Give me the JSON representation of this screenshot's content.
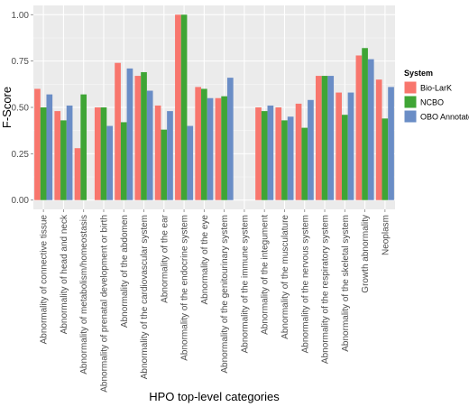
{
  "chart_data": {
    "type": "bar",
    "xlabel": "HPO top-level categories",
    "ylabel": "F-Score",
    "ylim": [
      -0.05,
      1.05
    ],
    "yticks": [
      "0.00",
      "0.25",
      "0.50",
      "0.75",
      "1.00"
    ],
    "grid": true,
    "legend": {
      "title": "System",
      "position": "right"
    },
    "categories": [
      "Abnormality of connective tissue",
      "Abnormality of head and neck",
      "Abnormality of metabolism/homeostasis",
      "Abnormality of prenatal development or birth",
      "Abnormality of the abdomen",
      "Abnormality of the cardiovascular system",
      "Abnormality of the ear",
      "Abnormality of the endocrine system",
      "Abnormality of the eye",
      "Abnormality of the genitourinary system",
      "Abnormality of the immune system",
      "Abnormality of the integument",
      "Abnormality of the musculature",
      "Abnormality of the nervous system",
      "Abnormality of the respiratory system",
      "Abnormality of the skeletal system",
      "Growth abnormality",
      "Neoplasm"
    ],
    "series": [
      {
        "name": "Bio-LarK",
        "color": "#F8766D",
        "values": [
          0.6,
          0.48,
          0.28,
          0.5,
          0.74,
          0.67,
          0.51,
          1.0,
          0.61,
          0.55,
          null,
          0.5,
          0.5,
          0.52,
          0.67,
          0.58,
          0.78,
          0.65
        ]
      },
      {
        "name": "NCBO",
        "color": "#3FA535",
        "values": [
          0.5,
          0.43,
          0.57,
          0.5,
          0.42,
          0.69,
          0.38,
          1.0,
          0.6,
          0.56,
          null,
          0.48,
          0.43,
          0.39,
          0.67,
          0.46,
          0.82,
          0.44
        ]
      },
      {
        "name": "OBO Annotator",
        "color": "#6A8DC6",
        "values": [
          0.57,
          0.51,
          null,
          0.4,
          0.71,
          0.59,
          0.48,
          0.4,
          0.55,
          0.66,
          null,
          0.51,
          0.45,
          0.54,
          0.67,
          0.58,
          0.76,
          0.61
        ]
      }
    ]
  }
}
